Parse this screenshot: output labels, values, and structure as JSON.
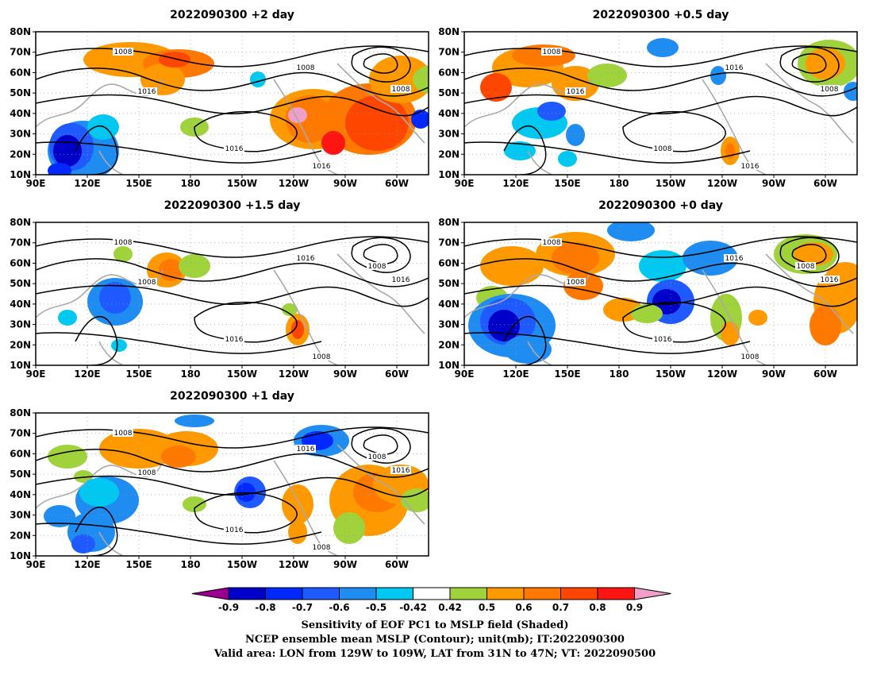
{
  "panels": [
    {
      "id": "p2",
      "title": "2022090300  +2 day",
      "contour_labels": [
        "1008",
        "1008",
        "1016",
        "1016",
        "1016",
        "1008"
      ]
    },
    {
      "id": "p05",
      "title": "2022090300  +0.5 day",
      "contour_labels": [
        "1008",
        "1016",
        "1016",
        "1008",
        "1016",
        "1008"
      ]
    },
    {
      "id": "p15",
      "title": "2022090300  +1.5 day",
      "contour_labels": [
        "1008",
        "1016",
        "1008",
        "1016",
        "1008",
        "1016",
        "1008"
      ]
    },
    {
      "id": "p0",
      "title": "2022090300  +0 day",
      "contour_labels": [
        "1008",
        "1016",
        "1008",
        "1016",
        "1008",
        "1016",
        "1008"
      ]
    },
    {
      "id": "p1",
      "title": "2022090300  +1 day",
      "contour_labels": [
        "1008",
        "1016",
        "1008",
        "1016",
        "1008",
        "1016",
        "1008"
      ]
    }
  ],
  "lat_ticks": [
    "80N",
    "70N",
    "60N",
    "50N",
    "40N",
    "30N",
    "20N",
    "10N"
  ],
  "lon_ticks": [
    "90E",
    "120E",
    "150E",
    "180",
    "150W",
    "120W",
    "90W",
    "60W"
  ],
  "colorbar": {
    "ticks": [
      "-0.9",
      "-0.8",
      "-0.7",
      "-0.6",
      "-0.5",
      "-0.42",
      "0.42",
      "0.5",
      "0.6",
      "0.7",
      "0.8",
      "0.9"
    ],
    "colors": [
      "#9a0090",
      "#0000c8",
      "#0028ff",
      "#1e5aff",
      "#1e8cf0",
      "#00c8f0",
      "#ffffff",
      "#a0d23c",
      "#ff9900",
      "#ff7800",
      "#ff4600",
      "#ff1414",
      "#f0a0c8"
    ]
  },
  "caption": {
    "line1": "Sensitivity of EOF PC1 to MSLP field (Shaded)",
    "line2": "NCEP ensemble mean MSLP (Contour); unit(mb); IT:2022090300",
    "line3": "Valid area: LON from 129W to 109W, LAT from 31N to 47N; VT: 2022090500"
  }
}
